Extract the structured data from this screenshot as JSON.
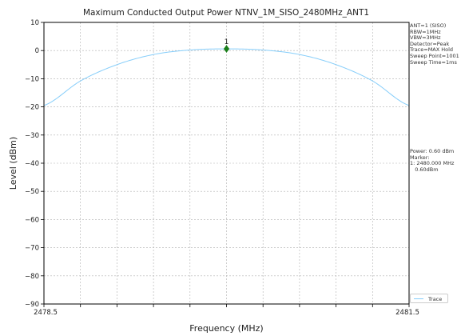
{
  "chart_data": {
    "type": "line",
    "title": "Maximum Conducted Output Power NTNV_1M_SISO_2480MHz_ANT1",
    "xlabel": "Frequency (MHz)",
    "ylabel": "Level (dBm)",
    "xlim": [
      2478.5,
      2481.5
    ],
    "ylim": [
      -90,
      10
    ],
    "x_tick_labels": [
      "2478.5",
      "2481.5"
    ],
    "y_ticks": [
      10,
      0,
      -10,
      -20,
      -30,
      -40,
      -50,
      -60,
      -70,
      -80,
      -90
    ],
    "y_tick_labels": [
      "10",
      "0",
      "−10",
      "−20",
      "−30",
      "−40",
      "−50",
      "−60",
      "−70",
      "−80",
      "−90"
    ],
    "grid": true,
    "series": [
      {
        "name": "Trace",
        "color": "#87CEFA",
        "x": [
          2478.5,
          2478.8,
          2479.1,
          2479.4,
          2479.7,
          2480.0,
          2480.3,
          2480.6,
          2480.9,
          2481.2,
          2481.5
        ],
        "y": [
          -19.5,
          -10.8,
          -5.0,
          -1.4,
          0.2,
          0.6,
          0.2,
          -1.4,
          -5.0,
          -10.8,
          -19.5
        ]
      }
    ],
    "marker": {
      "label": "1",
      "x": 2480.0,
      "y": 0.6,
      "color": "#1a7f1a"
    },
    "legend_position": "bottom-right"
  },
  "info_top": [
    "ANT=1 (SISO)",
    "RBW=1MHz",
    "VBW=3MHz",
    "Detector=Peak",
    "Trace=MAX Hold",
    "Sweep Point=1001",
    "Sweep Time=1ms"
  ],
  "info_bottom": [
    "Power: 0.60 dBm",
    "Marker:",
    "1: 2480.000 MHz",
    "   0.60dBm"
  ],
  "legend_label": "Trace"
}
